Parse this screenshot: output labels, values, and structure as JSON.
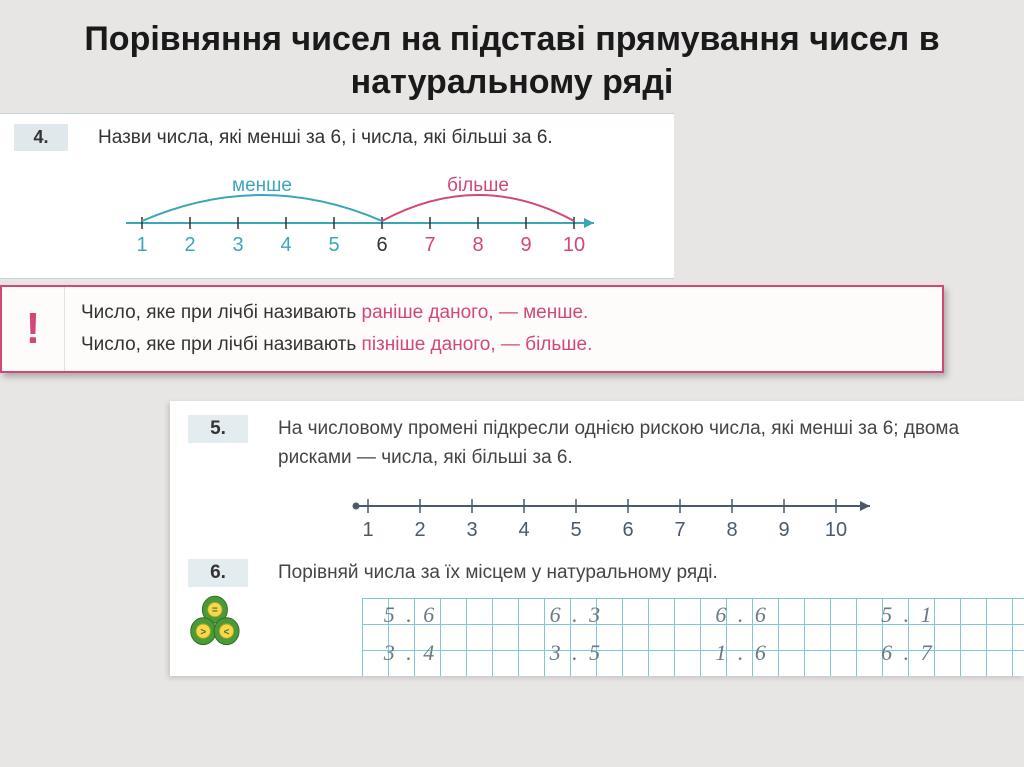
{
  "title": "Порівняння чисел на підставі прямування чисел в натуральному ряді",
  "ex4": {
    "num": "4.",
    "text": "Назви числа, які менші за 6, і числа, які більші за 6.",
    "label_less": "менше",
    "label_more": "більше",
    "numline": {
      "values": [
        "1",
        "2",
        "3",
        "4",
        "5",
        "6",
        "7",
        "8",
        "9",
        "10"
      ],
      "color_less": "#3aa7b8",
      "color_more": "#d2467a",
      "pivot": 6
    }
  },
  "rule": {
    "icon": "!",
    "line1_a": "Число, яке при лічбі називають ",
    "line1_b": "раніше даного, — менше.",
    "line2_a": "Число, яке при лічбі називають ",
    "line2_b": "пізніше даного, — більше."
  },
  "ex5": {
    "num": "5.",
    "text": "На числовому промені підкресли однією рискою числа, які менші за 6; двома рисками — числа, які більші за 6.",
    "numline": {
      "values": [
        "1",
        "2",
        "3",
        "4",
        "5",
        "6",
        "7",
        "8",
        "9",
        "10"
      ],
      "color": "#4a5a6a"
    }
  },
  "ex6": {
    "num": "6.",
    "text": "Порівняй числа за їх місцем у натуральному ряді.",
    "grid": {
      "row1": [
        "5 . 6",
        "6 . 3",
        "6 . 6",
        "5 . 1"
      ],
      "row2": [
        "3 . 4",
        "3 . 5",
        "1 . 6",
        "6 . 7"
      ]
    },
    "clover": {
      "leaf_color": "#4a9a3a",
      "badge_bg": "#f5d94a",
      "badge_color": "#5a6a2a",
      "symbols": [
        "=",
        ">",
        "<"
      ]
    }
  }
}
